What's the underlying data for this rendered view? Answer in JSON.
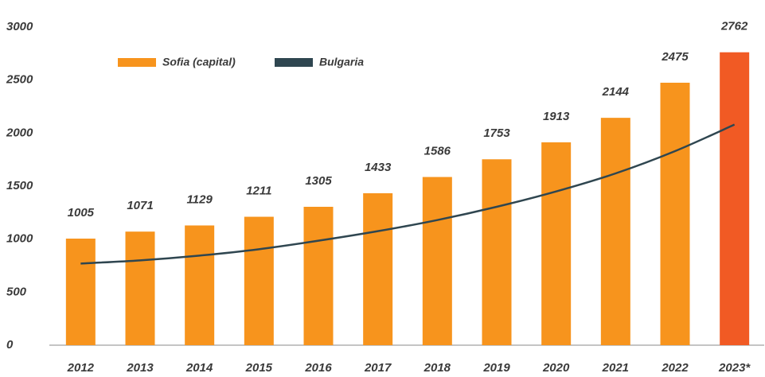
{
  "chart_data": {
    "type": "bar",
    "categories": [
      "2012",
      "2013",
      "2014",
      "2015",
      "2016",
      "2017",
      "2018",
      "2019",
      "2020",
      "2021",
      "2022",
      "2023*"
    ],
    "series": [
      {
        "name": "Sofia (capital)",
        "type": "bar",
        "color": "#f7941d",
        "colors": [
          "#f7941d",
          "#f7941d",
          "#f7941d",
          "#f7941d",
          "#f7941d",
          "#f7941d",
          "#f7941d",
          "#f7941d",
          "#f7941d",
          "#f7941d",
          "#f7941d",
          "#f15a24"
        ],
        "values": [
          1005,
          1071,
          1129,
          1211,
          1305,
          1433,
          1586,
          1753,
          1913,
          2144,
          2475,
          2762
        ]
      },
      {
        "name": "Bulgaria",
        "type": "line",
        "color": "#2f4650",
        "values": [
          770,
          800,
          845,
          905,
          985,
          1075,
          1180,
          1305,
          1450,
          1620,
          1830,
          2080
        ]
      }
    ],
    "ylim": [
      0,
      3000
    ],
    "yticks": [
      0,
      500,
      1000,
      1500,
      2000,
      2500,
      3000
    ],
    "grid": false
  }
}
